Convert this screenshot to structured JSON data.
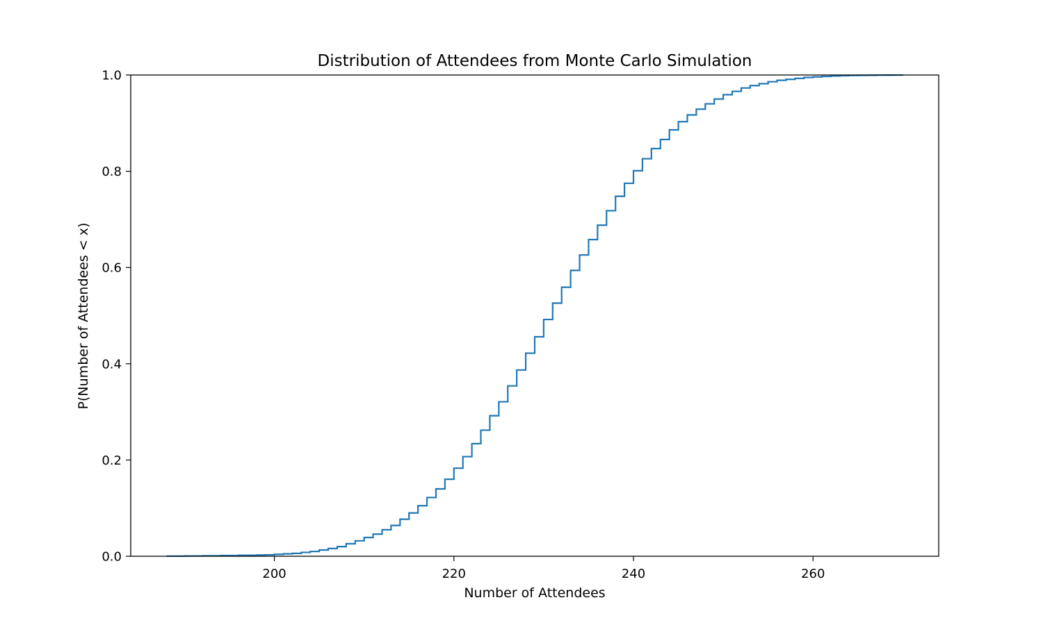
{
  "chart_data": {
    "type": "line",
    "style": "step-cdf",
    "title": "Distribution of Attendees from Monte Carlo Simulation",
    "xlabel": "Number of Attendees",
    "ylabel": "P(Number of Attendees < x)",
    "xlim": [
      184,
      274
    ],
    "ylim": [
      0,
      1
    ],
    "xticks": [
      200,
      220,
      240,
      260
    ],
    "xtick_labels": [
      "200",
      "220",
      "240",
      "260"
    ],
    "yticks": [
      0,
      0.2,
      0.4,
      0.6,
      0.8,
      1.0
    ],
    "ytick_labels": [
      "0.0",
      "0.2",
      "0.4",
      "0.6",
      "0.8",
      "1.0"
    ],
    "grid": false,
    "line_color": "#1f77b4",
    "series": [
      {
        "x": [
          188,
          190,
          192,
          194,
          196,
          198,
          199,
          200,
          201,
          202,
          203,
          204,
          205,
          206,
          207,
          208,
          209,
          210,
          211,
          212,
          213,
          214,
          215,
          216,
          217,
          218,
          219,
          220,
          221,
          222,
          223,
          224,
          225,
          226,
          227,
          228,
          229,
          230,
          231,
          232,
          233,
          234,
          235,
          236,
          237,
          238,
          239,
          240,
          241,
          242,
          243,
          244,
          245,
          246,
          247,
          248,
          249,
          250,
          251,
          252,
          253,
          254,
          255,
          256,
          257,
          258,
          259,
          260,
          261,
          262,
          263,
          264,
          265,
          266,
          267,
          268,
          269,
          270
        ],
        "y": [
          0.0003,
          0.0006,
          0.001,
          0.0015,
          0.002,
          0.0025,
          0.003,
          0.004,
          0.005,
          0.006,
          0.008,
          0.01,
          0.013,
          0.016,
          0.02,
          0.026,
          0.032,
          0.039,
          0.046,
          0.055,
          0.064,
          0.077,
          0.09,
          0.105,
          0.122,
          0.14,
          0.16,
          0.183,
          0.207,
          0.234,
          0.262,
          0.292,
          0.321,
          0.354,
          0.387,
          0.422,
          0.456,
          0.492,
          0.526,
          0.559,
          0.594,
          0.626,
          0.658,
          0.688,
          0.718,
          0.748,
          0.775,
          0.801,
          0.826,
          0.847,
          0.866,
          0.886,
          0.903,
          0.917,
          0.929,
          0.94,
          0.95,
          0.959,
          0.966,
          0.973,
          0.978,
          0.982,
          0.986,
          0.989,
          0.991,
          0.993,
          0.995,
          0.996,
          0.997,
          0.998,
          0.9985,
          0.999,
          0.9993,
          0.9995,
          0.9997,
          0.9998,
          0.9999,
          1.0
        ]
      }
    ]
  }
}
